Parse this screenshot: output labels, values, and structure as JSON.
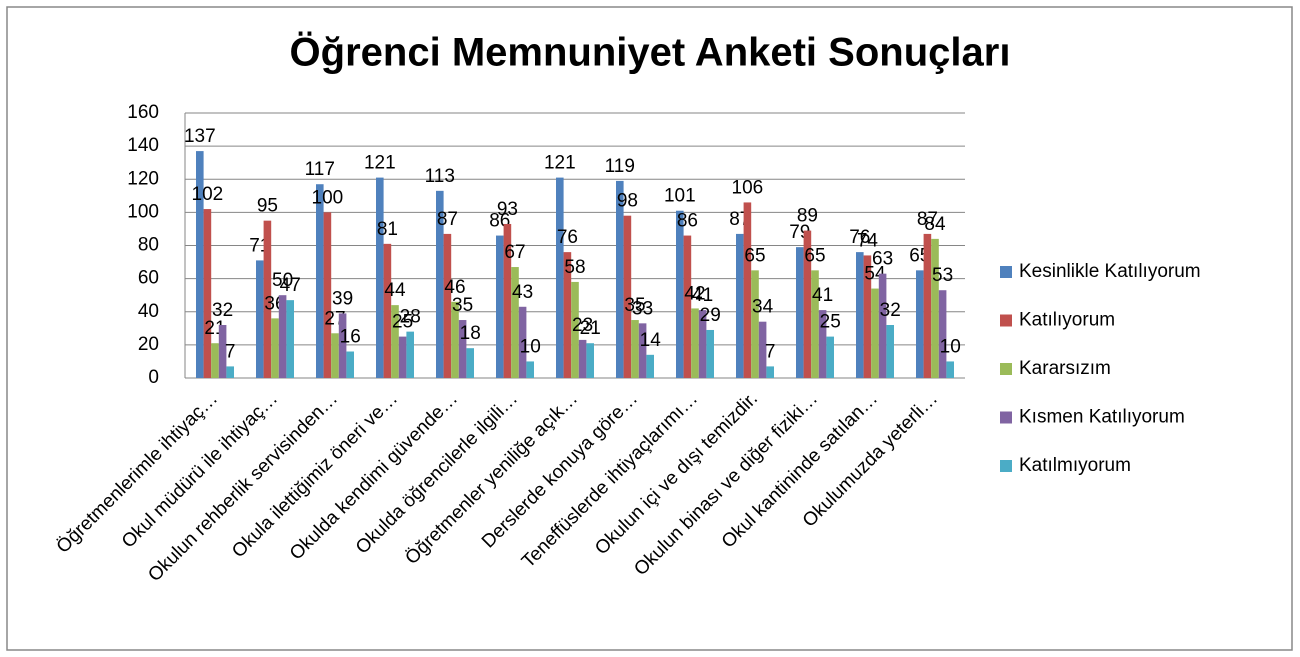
{
  "chart_data": {
    "type": "bar",
    "title": "Öğrenci Memnuniyet Anketi Sonuçları",
    "categories": [
      "Öğretmenlerimle ihtiyaç…",
      "Okul müdürü ile ihtiyaç…",
      "Okulun rehberlik servisinden…",
      "Okula ilettiğimiz öneri ve…",
      "Okulda kendimi güvende…",
      "Okulda öğrencilerle ilgili…",
      "Öğretmenler yeniliğe açık…",
      "Derslerde konuya göre…",
      "Teneffüslerde ihtiyaçlarımı…",
      "Okulun içi ve dışı temizdir.",
      "Okulun binası ve diğer fiziki…",
      "Okul kantininde satılan…",
      "Okulumuzda yeterli…"
    ],
    "series": [
      {
        "name": "Kesinlikle Katılıyorum",
        "color": "#4f81bd",
        "values": [
          137,
          71,
          117,
          121,
          113,
          86,
          121,
          119,
          101,
          87,
          79,
          76,
          65
        ]
      },
      {
        "name": "Katılıyorum",
        "color": "#c0504d",
        "values": [
          102,
          95,
          100,
          81,
          87,
          93,
          76,
          98,
          86,
          106,
          89,
          74,
          87
        ]
      },
      {
        "name": "Kararsızım",
        "color": "#9bbb59",
        "values": [
          21,
          36,
          27,
          44,
          46,
          67,
          58,
          35,
          42,
          65,
          65,
          54,
          84
        ]
      },
      {
        "name": "Kısmen Katılıyorum",
        "color": "#8064a2",
        "values": [
          32,
          50,
          39,
          25,
          35,
          43,
          23,
          33,
          41,
          34,
          41,
          63,
          53
        ]
      },
      {
        "name": "Katılmıyorum",
        "color": "#4bacc6",
        "values": [
          7,
          47,
          16,
          28,
          18,
          10,
          21,
          14,
          29,
          7,
          25,
          32,
          10
        ]
      }
    ],
    "ylim": [
      0,
      160
    ],
    "yticks": [
      0,
      20,
      40,
      60,
      80,
      100,
      120,
      140,
      160
    ],
    "grid": true,
    "legend": "right"
  }
}
